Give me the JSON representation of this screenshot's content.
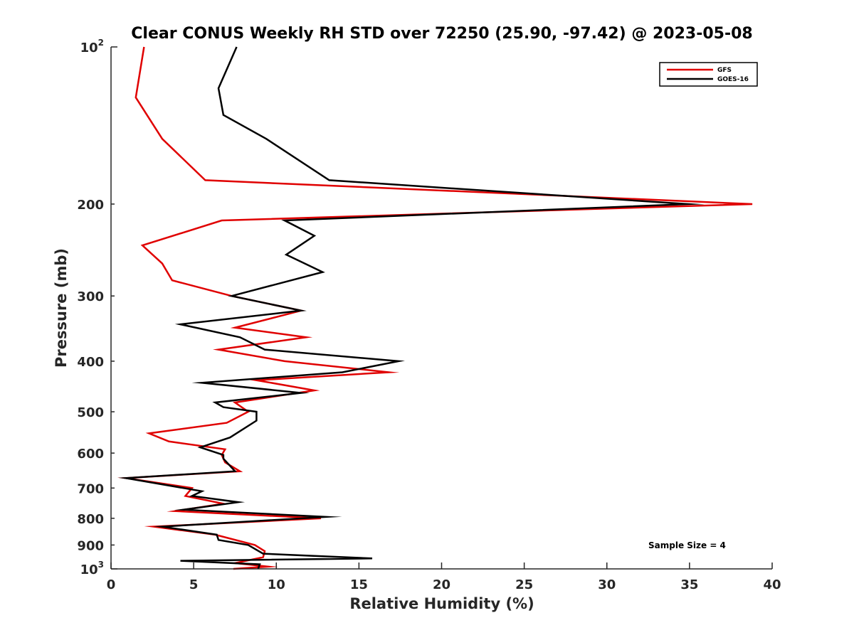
{
  "chart_data": {
    "type": "line",
    "title": "Clear CONUS Weekly RH STD over 72250 (25.90, -97.42) @ 2023-05-08",
    "xlabel": "Relative Humidity (%)",
    "ylabel": "Pressure (mb)",
    "xlim": [
      0,
      40
    ],
    "ylim": [
      100,
      1000
    ],
    "y_scale": "log",
    "y_reversed": true,
    "x_ticks": [
      0,
      5,
      10,
      15,
      20,
      25,
      30,
      35,
      40
    ],
    "x_tick_labels": [
      "0",
      "5",
      "10",
      "15",
      "20",
      "25",
      "30",
      "35",
      "40"
    ],
    "y_ticks": [
      100,
      200,
      300,
      400,
      500,
      600,
      700,
      800,
      900,
      1000
    ],
    "y_tick_labels": [
      {
        "base": "10",
        "exp": "2"
      },
      {
        "base": "200",
        "exp": ""
      },
      {
        "base": "300",
        "exp": ""
      },
      {
        "base": "400",
        "exp": ""
      },
      {
        "base": "500",
        "exp": ""
      },
      {
        "base": "600",
        "exp": ""
      },
      {
        "base": "700",
        "exp": ""
      },
      {
        "base": "800",
        "exp": ""
      },
      {
        "base": "900",
        "exp": ""
      },
      {
        "base": "10",
        "exp": "3"
      }
    ],
    "grid": false,
    "legend_position": "top-right",
    "annotation": "Sample Size = 4",
    "series": [
      {
        "name": "GFS",
        "color": "#e00000",
        "points": [
          [
            2.0,
            100
          ],
          [
            1.5,
            125
          ],
          [
            3.1,
            150
          ],
          [
            5.7,
            180
          ],
          [
            38.8,
            200
          ],
          [
            6.7,
            215
          ],
          [
            1.9,
            240
          ],
          [
            3.1,
            260
          ],
          [
            3.7,
            280
          ],
          [
            7.3,
            300
          ],
          [
            11.5,
            320
          ],
          [
            7.5,
            345
          ],
          [
            11.8,
            360
          ],
          [
            6.5,
            380
          ],
          [
            10.5,
            400
          ],
          [
            16.8,
            420
          ],
          [
            8.8,
            435
          ],
          [
            12.3,
            455
          ],
          [
            7.5,
            480
          ],
          [
            8.3,
            500
          ],
          [
            7.0,
            525
          ],
          [
            2.3,
            550
          ],
          [
            3.5,
            570
          ],
          [
            6.9,
            590
          ],
          [
            6.7,
            605
          ],
          [
            6.9,
            625
          ],
          [
            7.8,
            650
          ],
          [
            0.9,
            670
          ],
          [
            4.9,
            700
          ],
          [
            4.5,
            725
          ],
          [
            6.8,
            750
          ],
          [
            3.9,
            775
          ],
          [
            12.7,
            800
          ],
          [
            2.6,
            830
          ],
          [
            6.3,
            860
          ],
          [
            8.7,
            900
          ],
          [
            9.3,
            925
          ],
          [
            9.2,
            950
          ],
          [
            7.5,
            975
          ],
          [
            9.5,
            990
          ],
          [
            7.4,
            1000
          ]
        ]
      },
      {
        "name": "GOES-16",
        "color": "#000000",
        "points": [
          [
            7.6,
            100
          ],
          [
            6.5,
            120
          ],
          [
            6.8,
            135
          ],
          [
            9.4,
            150
          ],
          [
            13.2,
            180
          ],
          [
            34.9,
            200
          ],
          [
            10.5,
            215
          ],
          [
            12.3,
            230
          ],
          [
            10.6,
            250
          ],
          [
            12.8,
            270
          ],
          [
            7.3,
            300
          ],
          [
            11.5,
            320
          ],
          [
            4.2,
            340
          ],
          [
            7.8,
            360
          ],
          [
            9.3,
            380
          ],
          [
            17.4,
            400
          ],
          [
            14.0,
            420
          ],
          [
            5.5,
            440
          ],
          [
            11.5,
            460
          ],
          [
            6.3,
            480
          ],
          [
            6.8,
            490
          ],
          [
            8.8,
            500
          ],
          [
            8.8,
            520
          ],
          [
            7.2,
            560
          ],
          [
            5.4,
            585
          ],
          [
            6.8,
            605
          ],
          [
            6.8,
            615
          ],
          [
            7.5,
            650
          ],
          [
            0.9,
            670
          ],
          [
            5.5,
            710
          ],
          [
            4.9,
            725
          ],
          [
            7.7,
            745
          ],
          [
            4.4,
            770
          ],
          [
            13.0,
            795
          ],
          [
            3.1,
            830
          ],
          [
            6.4,
            860
          ],
          [
            6.5,
            880
          ],
          [
            8.3,
            900
          ],
          [
            9.2,
            935
          ],
          [
            15.8,
            955
          ],
          [
            4.2,
            965
          ],
          [
            9.0,
            980
          ],
          [
            8.9,
            1000
          ]
        ]
      }
    ]
  }
}
